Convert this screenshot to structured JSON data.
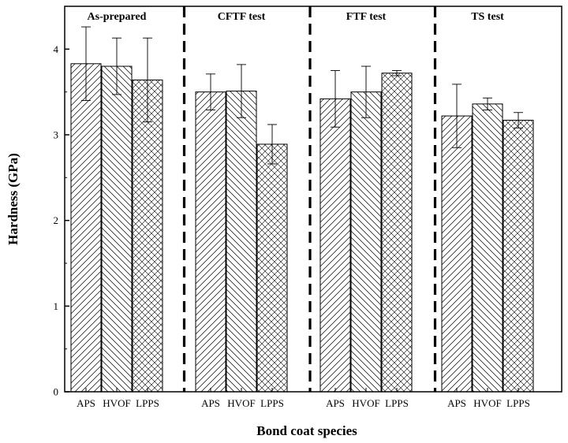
{
  "chart_data": {
    "type": "bar",
    "xlabel": "Bond coat species",
    "ylabel": "Hardness (GPa)",
    "ylim": [
      0,
      4.5
    ],
    "yticks": [
      0,
      1,
      2,
      3,
      4
    ],
    "grid": false,
    "legend": "none",
    "hatch_by_category": {
      "APS": "diagonal-up",
      "HVOF": "diagonal-down",
      "LPPS": "crosshatch"
    },
    "groups": [
      {
        "label": "As-prepared",
        "categories": [
          "APS",
          "HVOF",
          "LPPS"
        ],
        "values": [
          3.83,
          3.8,
          3.64
        ],
        "errors": [
          0.43,
          0.33,
          0.49
        ]
      },
      {
        "label": "CFTF test",
        "categories": [
          "APS",
          "HVOF",
          "LPPS"
        ],
        "values": [
          3.5,
          3.51,
          2.89
        ],
        "errors": [
          0.21,
          0.31,
          0.23
        ]
      },
      {
        "label": "FTF test",
        "categories": [
          "APS",
          "HVOF",
          "LPPS"
        ],
        "values": [
          3.42,
          3.5,
          3.72
        ],
        "errors": [
          0.33,
          0.3,
          0.03
        ]
      },
      {
        "label": "TS test",
        "categories": [
          "APS",
          "HVOF",
          "LPPS"
        ],
        "values": [
          3.22,
          3.36,
          3.17
        ],
        "errors": [
          0.37,
          0.07,
          0.09
        ]
      }
    ]
  }
}
